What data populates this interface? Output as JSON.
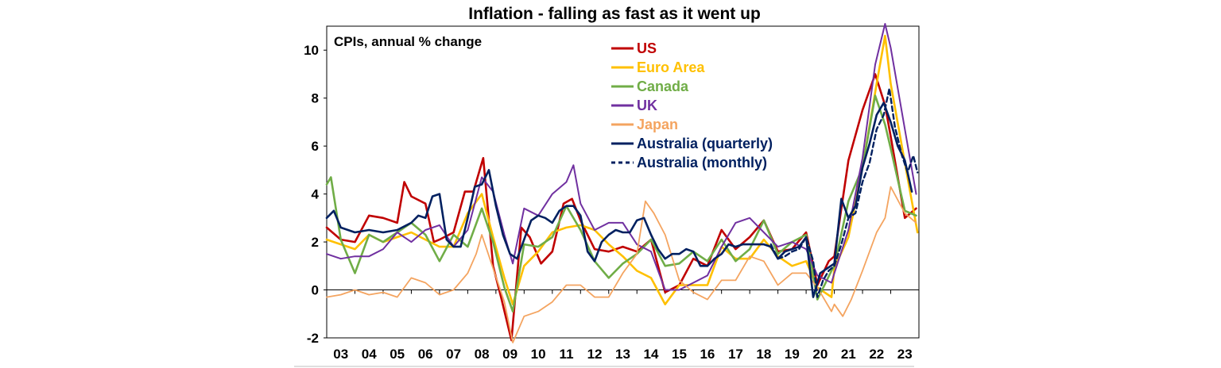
{
  "chart_data": {
    "type": "line",
    "title": "Inflation - falling as fast as it went up",
    "subtitle": "CPIs, annual % change",
    "xlabel": "",
    "ylabel": "",
    "xlim": [
      2003,
      2024
    ],
    "ylim": [
      -2,
      11
    ],
    "yticks": [
      -2,
      0,
      2,
      4,
      6,
      8,
      10
    ],
    "xtick_labels": [
      "03",
      "04",
      "05",
      "06",
      "07",
      "08",
      "09",
      "10",
      "11",
      "12",
      "13",
      "14",
      "15",
      "16",
      "17",
      "18",
      "19",
      "20",
      "21",
      "22",
      "23"
    ],
    "legend_position": "top-center",
    "series": [
      {
        "name": "US",
        "color": "#c00000",
        "width": 2.6,
        "dash": "",
        "x": [
          2003.0,
          2003.5,
          2004.0,
          2004.5,
          2005.0,
          2005.5,
          2005.75,
          2006.0,
          2006.5,
          2006.8,
          2007.0,
          2007.5,
          2007.9,
          2008.2,
          2008.55,
          2008.9,
          2009.2,
          2009.55,
          2009.9,
          2010.2,
          2010.6,
          2011.0,
          2011.4,
          2011.7,
          2012.0,
          2012.5,
          2013.0,
          2013.5,
          2014.0,
          2014.5,
          2015.0,
          2015.5,
          2016.0,
          2016.5,
          2017.0,
          2017.5,
          2018.0,
          2018.5,
          2019.0,
          2019.5,
          2020.0,
          2020.4,
          2020.8,
          2021.0,
          2021.5,
          2022.0,
          2022.45,
          2022.8,
          2023.0,
          2023.5,
          2023.9
        ],
        "values": [
          2.6,
          2.1,
          2.0,
          3.1,
          3.0,
          2.8,
          4.5,
          3.9,
          3.6,
          2.0,
          2.1,
          2.4,
          4.1,
          4.1,
          5.5,
          1.0,
          -0.4,
          -2.1,
          2.6,
          2.2,
          1.1,
          1.6,
          3.6,
          3.8,
          2.9,
          1.7,
          1.6,
          1.8,
          1.6,
          2.1,
          -0.1,
          0.2,
          1.3,
          1.0,
          2.5,
          1.7,
          2.2,
          2.9,
          1.6,
          1.7,
          2.4,
          0.2,
          1.2,
          1.4,
          5.4,
          7.5,
          9.0,
          7.7,
          6.4,
          3.0,
          3.4
        ]
      },
      {
        "name": "Euro Area",
        "color": "#ffc000",
        "width": 2.6,
        "dash": "",
        "x": [
          2003.0,
          2004.0,
          2004.5,
          2005.0,
          2005.5,
          2006.0,
          2006.5,
          2007.0,
          2007.5,
          2008.0,
          2008.5,
          2008.9,
          2009.3,
          2009.6,
          2010.0,
          2010.5,
          2011.0,
          2011.5,
          2012.0,
          2012.5,
          2013.0,
          2013.5,
          2014.0,
          2014.5,
          2015.0,
          2015.5,
          2016.0,
          2016.5,
          2017.0,
          2017.5,
          2018.0,
          2018.5,
          2019.0,
          2019.5,
          2020.0,
          2020.4,
          2020.9,
          2021.0,
          2021.5,
          2022.0,
          2022.5,
          2022.8,
          2023.0,
          2023.5,
          2023.95
        ],
        "values": [
          2.1,
          1.7,
          2.3,
          2.0,
          2.2,
          2.4,
          2.1,
          1.8,
          1.8,
          3.2,
          4.0,
          2.2,
          0.5,
          -0.6,
          1.0,
          1.6,
          2.4,
          2.6,
          2.7,
          2.5,
          1.9,
          1.4,
          0.8,
          0.5,
          -0.6,
          0.2,
          0.2,
          0.2,
          1.8,
          1.3,
          1.3,
          2.1,
          1.4,
          1.0,
          1.2,
          0.1,
          -0.3,
          0.9,
          2.2,
          5.1,
          8.6,
          10.6,
          8.6,
          5.3,
          2.4
        ]
      },
      {
        "name": "Canada",
        "color": "#70ad47",
        "width": 2.6,
        "dash": "",
        "x": [
          2003.0,
          2003.15,
          2003.5,
          2004.0,
          2004.5,
          2005.0,
          2005.5,
          2006.0,
          2006.5,
          2007.0,
          2007.5,
          2008.0,
          2008.5,
          2008.9,
          2009.3,
          2009.6,
          2010.0,
          2010.5,
          2011.0,
          2011.5,
          2012.0,
          2012.5,
          2013.0,
          2013.5,
          2014.0,
          2014.5,
          2015.0,
          2015.5,
          2016.0,
          2016.5,
          2017.0,
          2017.5,
          2018.0,
          2018.5,
          2019.0,
          2019.5,
          2020.0,
          2020.4,
          2020.9,
          2021.0,
          2021.5,
          2022.0,
          2022.45,
          2022.8,
          2023.0,
          2023.5,
          2023.9
        ],
        "values": [
          4.4,
          4.7,
          2.1,
          0.7,
          2.3,
          2.0,
          2.4,
          2.8,
          2.3,
          1.2,
          2.3,
          1.8,
          3.4,
          2.0,
          0.1,
          -0.9,
          1.9,
          1.8,
          2.2,
          3.5,
          2.5,
          1.2,
          0.5,
          1.1,
          1.5,
          2.1,
          1.0,
          1.1,
          1.6,
          1.2,
          2.1,
          1.2,
          1.7,
          2.9,
          1.5,
          2.0,
          2.3,
          -0.4,
          0.8,
          1.0,
          3.7,
          5.1,
          8.1,
          6.9,
          5.9,
          3.3,
          3.1
        ]
      },
      {
        "name": "UK",
        "color": "#7030a0",
        "width": 2.0,
        "dash": "",
        "x": [
          2003.0,
          2003.5,
          2004.0,
          2004.5,
          2005.0,
          2005.5,
          2006.0,
          2006.5,
          2007.0,
          2007.5,
          2008.0,
          2008.5,
          2008.9,
          2009.3,
          2009.6,
          2010.0,
          2010.5,
          2011.0,
          2011.5,
          2011.75,
          2012.0,
          2012.5,
          2013.0,
          2013.5,
          2014.0,
          2014.5,
          2015.0,
          2015.5,
          2016.0,
          2016.5,
          2017.0,
          2017.5,
          2018.0,
          2018.5,
          2019.0,
          2019.5,
          2020.0,
          2020.4,
          2020.9,
          2021.0,
          2021.5,
          2022.0,
          2022.45,
          2022.8,
          2023.0,
          2023.5,
          2023.9
        ],
        "values": [
          1.5,
          1.3,
          1.4,
          1.4,
          1.7,
          2.4,
          2.0,
          2.5,
          2.7,
          1.8,
          2.5,
          4.7,
          4.1,
          2.3,
          1.1,
          3.4,
          3.1,
          4.0,
          4.5,
          5.2,
          3.6,
          2.5,
          2.8,
          2.8,
          1.9,
          1.6,
          0.0,
          0.0,
          0.3,
          0.6,
          1.8,
          2.8,
          3.0,
          2.4,
          1.8,
          2.0,
          1.7,
          0.6,
          0.3,
          0.7,
          2.5,
          5.5,
          9.4,
          11.1,
          10.1,
          6.7,
          4.0
        ]
      },
      {
        "name": "Japan",
        "color": "#f4a460",
        "width": 1.8,
        "dash": "",
        "x": [
          2003.0,
          2003.5,
          2004.0,
          2004.5,
          2005.0,
          2005.5,
          2006.0,
          2006.5,
          2007.0,
          2007.5,
          2008.0,
          2008.3,
          2008.5,
          2008.9,
          2009.3,
          2009.6,
          2010.0,
          2010.5,
          2011.0,
          2011.5,
          2012.0,
          2012.5,
          2013.0,
          2013.5,
          2014.0,
          2014.3,
          2014.6,
          2015.0,
          2015.5,
          2016.0,
          2016.5,
          2017.0,
          2017.5,
          2018.0,
          2018.5,
          2019.0,
          2019.5,
          2020.0,
          2020.4,
          2020.9,
          2021.0,
          2021.3,
          2021.6,
          2022.0,
          2022.5,
          2022.8,
          2023.0,
          2023.5,
          2023.9
        ],
        "values": [
          -0.3,
          -0.2,
          0.0,
          -0.2,
          -0.1,
          -0.3,
          0.5,
          0.3,
          -0.2,
          0.0,
          0.7,
          1.5,
          2.3,
          0.9,
          -0.5,
          -2.2,
          -1.1,
          -0.9,
          -0.5,
          0.2,
          0.2,
          -0.3,
          -0.3,
          0.7,
          1.5,
          3.7,
          3.2,
          2.3,
          0.4,
          -0.1,
          -0.4,
          0.4,
          0.4,
          1.4,
          1.2,
          0.2,
          0.7,
          0.7,
          0.1,
          -0.9,
          -0.6,
          -1.1,
          -0.4,
          0.8,
          2.4,
          3.0,
          4.3,
          3.2,
          2.8
        ]
      },
      {
        "name": "Australia (quarterly)",
        "color": "#002060",
        "width": 2.6,
        "dash": "",
        "x": [
          2003.0,
          2003.25,
          2003.5,
          2004.0,
          2004.5,
          2005.0,
          2005.5,
          2006.0,
          2006.25,
          2006.5,
          2006.75,
          2007.0,
          2007.25,
          2007.5,
          2007.75,
          2008.0,
          2008.25,
          2008.5,
          2008.75,
          2009.0,
          2009.25,
          2009.5,
          2009.75,
          2010.0,
          2010.25,
          2010.5,
          2010.75,
          2011.0,
          2011.25,
          2011.5,
          2011.75,
          2012.0,
          2012.25,
          2012.5,
          2012.75,
          2013.0,
          2013.25,
          2013.5,
          2013.75,
          2014.0,
          2014.25,
          2014.5,
          2014.75,
          2015.0,
          2015.25,
          2015.5,
          2015.75,
          2016.0,
          2016.25,
          2016.5,
          2016.75,
          2017.0,
          2017.25,
          2017.5,
          2017.75,
          2018.0,
          2018.25,
          2018.5,
          2018.75,
          2019.0,
          2019.25,
          2019.5,
          2019.75,
          2020.0,
          2020.25,
          2020.5,
          2020.75,
          2021.0,
          2021.25,
          2021.5,
          2021.75,
          2022.0,
          2022.25,
          2022.5,
          2022.75,
          2023.0,
          2023.25,
          2023.5,
          2023.75
        ],
        "values": [
          3.0,
          3.3,
          2.6,
          2.4,
          2.5,
          2.4,
          2.5,
          2.8,
          3.1,
          3.0,
          3.9,
          4.0,
          2.1,
          1.8,
          1.8,
          3.0,
          4.3,
          4.4,
          5.0,
          3.5,
          2.3,
          1.5,
          1.3,
          2.1,
          2.9,
          3.1,
          3.0,
          2.8,
          3.3,
          3.5,
          3.5,
          3.1,
          1.6,
          1.2,
          2.0,
          2.3,
          2.5,
          2.4,
          2.4,
          2.9,
          3.0,
          2.3,
          1.7,
          1.3,
          1.5,
          1.5,
          1.7,
          1.6,
          1.0,
          1.0,
          1.3,
          1.5,
          1.9,
          1.8,
          1.9,
          1.9,
          1.9,
          1.9,
          1.8,
          1.3,
          1.6,
          1.7,
          1.8,
          2.2,
          -0.3,
          0.7,
          0.9,
          1.1,
          3.8,
          3.0,
          3.5,
          5.1,
          6.1,
          7.3,
          7.8,
          7.0,
          6.0,
          5.4,
          4.1
        ]
      },
      {
        "name": "Australia (monthly)",
        "color": "#002060",
        "width": 2.4,
        "dash": "6,4",
        "x": [
          2018.75,
          2019.0,
          2019.25,
          2019.5,
          2019.75,
          2020.0,
          2020.25,
          2020.4,
          2020.6,
          2020.8,
          2021.0,
          2021.25,
          2021.5,
          2021.75,
          2022.0,
          2022.25,
          2022.5,
          2022.75,
          2022.95,
          2023.15,
          2023.4,
          2023.6,
          2023.8,
          2023.95
        ],
        "values": [
          1.9,
          1.3,
          1.4,
          1.6,
          1.7,
          2.2,
          1.2,
          -0.3,
          0.4,
          0.8,
          1.0,
          1.9,
          3.0,
          3.2,
          4.5,
          5.3,
          6.7,
          7.3,
          8.4,
          6.8,
          5.6,
          4.9,
          5.6,
          4.9
        ]
      }
    ]
  }
}
